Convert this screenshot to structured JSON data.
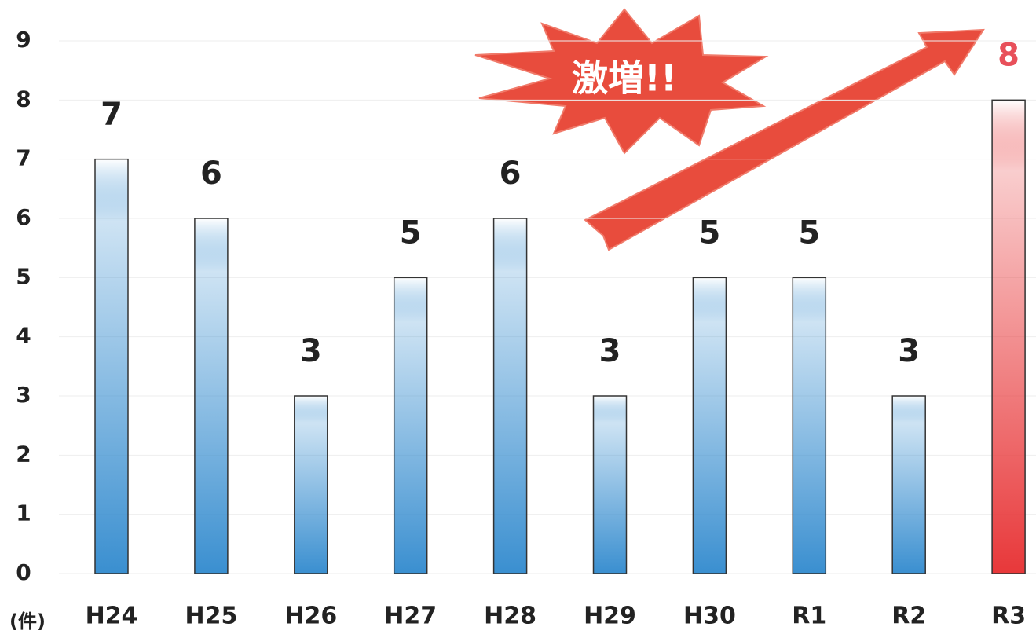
{
  "chart_data": {
    "type": "bar",
    "unit": "(件)",
    "annotation": "激増!!",
    "categories": [
      "H24",
      "H25",
      "H26",
      "H27",
      "H28",
      "H29",
      "H30",
      "R1",
      "R2",
      "R3"
    ],
    "values": [
      7,
      6,
      3,
      5,
      6,
      3,
      5,
      5,
      3,
      8
    ],
    "colors": [
      "#3a8fd0",
      "#3a8fd0",
      "#3a8fd0",
      "#3a8fd0",
      "#3a8fd0",
      "#3a8fd0",
      "#3a8fd0",
      "#3a8fd0",
      "#3a8fd0",
      "#e8383a"
    ],
    "label_colors": [
      "#222222",
      "#222222",
      "#222222",
      "#222222",
      "#222222",
      "#222222",
      "#222222",
      "#222222",
      "#222222",
      "#e8505a"
    ],
    "ylim": [
      0,
      9
    ],
    "yticks": [
      0,
      1,
      2,
      3,
      4,
      5,
      6,
      7,
      8,
      9
    ],
    "grid": true
  }
}
